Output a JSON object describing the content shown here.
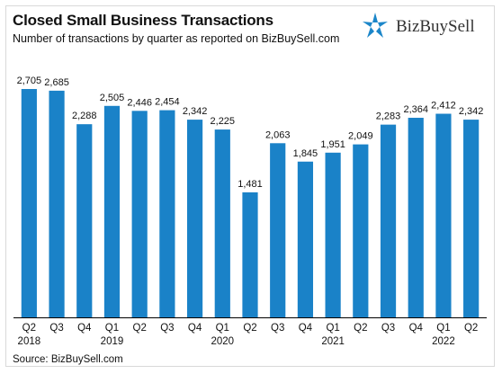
{
  "title": "Closed Small Business Transactions",
  "subtitle": "Number of transactions by quarter as reported on BizBuySell.com",
  "source": "Source: BizBuySell.com",
  "logo": {
    "text": "BizBuySell",
    "icon": "star-logo-icon",
    "color": "#1b86c9"
  },
  "colors": {
    "bar": "#1a82c8",
    "axis": "#000000"
  },
  "chart_data": {
    "type": "bar",
    "categories": [
      "Q2",
      "Q3",
      "Q4",
      "Q1",
      "Q2",
      "Q3",
      "Q4",
      "Q1",
      "Q2",
      "Q3",
      "Q4",
      "Q1",
      "Q2",
      "Q3",
      "Q4",
      "Q1",
      "Q2"
    ],
    "years": [
      {
        "label": "2018",
        "index": 0
      },
      {
        "label": "2019",
        "index": 3
      },
      {
        "label": "2020",
        "index": 7
      },
      {
        "label": "2021",
        "index": 11
      },
      {
        "label": "2022",
        "index": 15
      }
    ],
    "values": [
      2705,
      2685,
      2288,
      2505,
      2446,
      2454,
      2342,
      2225,
      1481,
      2063,
      1845,
      1951,
      2049,
      2283,
      2364,
      2412,
      2342
    ],
    "value_labels": [
      "2,705",
      "2,685",
      "2,288",
      "2,505",
      "2,446",
      "2,454",
      "2,342",
      "2,225",
      "1,481",
      "2,063",
      "1,845",
      "1,951",
      "2,049",
      "2,283",
      "2,364",
      "2,412",
      "2,342"
    ],
    "ylim": [
      0,
      2950
    ],
    "grid": false,
    "xlabel": "",
    "ylabel": ""
  }
}
